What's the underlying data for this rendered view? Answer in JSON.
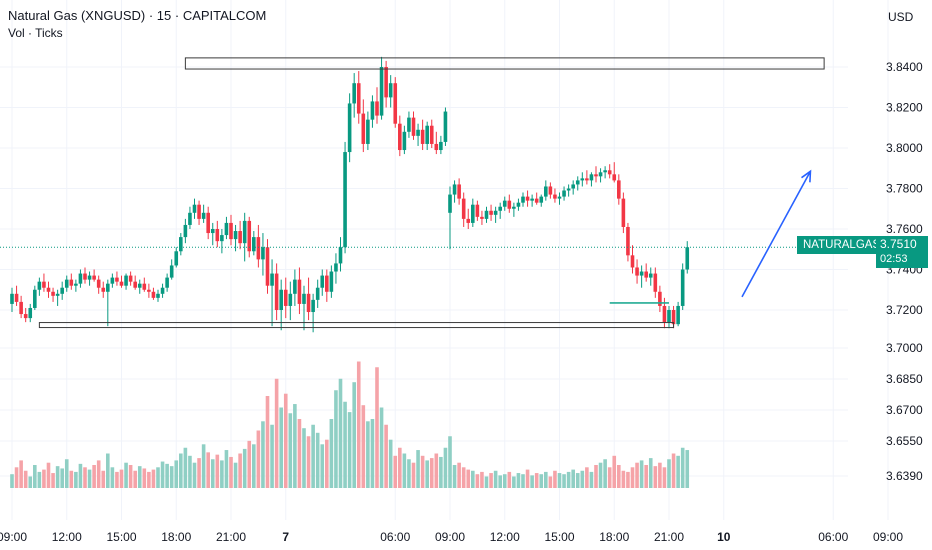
{
  "header": {
    "title": "Natural Gas (XNGUSD) · 15 · CAPITALCOM",
    "subtitle": "Vol · Ticks",
    "currency": "USD"
  },
  "price_label": {
    "symbol": "NATURALGAS",
    "last": "3.7510",
    "countdown": "02:53"
  },
  "colors": {
    "up": "#089981",
    "down": "#f23645",
    "vol_up": "#8fcfc4",
    "vol_down": "#f5a3a8",
    "arrow": "#2962ff",
    "line": "#22ab94",
    "box": "#3a3a3a"
  },
  "chart_data": {
    "type": "candlestick",
    "title": "Natural Gas (XNGUSD) · 15 · CAPITALCOM",
    "y_axis": {
      "ticks": [
        "3.8400",
        "3.8200",
        "3.8000",
        "3.7800",
        "3.7600",
        "3.7400",
        "3.7200",
        "3.7000",
        "3.6850",
        "3.6700",
        "3.6550",
        "3.6390"
      ],
      "tick_values": [
        3.84,
        3.82,
        3.8,
        3.78,
        3.76,
        3.74,
        3.72,
        3.7,
        3.685,
        3.67,
        3.655,
        3.639
      ],
      "unit": "USD"
    },
    "x_axis": {
      "ticks": [
        "09:00",
        "12:00",
        "15:00",
        "18:00",
        "21:00",
        "7",
        "06:00",
        "09:00",
        "12:00",
        "15:00",
        "18:00",
        "21:00",
        "10",
        "06:00",
        "09:00"
      ],
      "tick_hours": [
        0,
        3,
        6,
        9,
        12,
        15,
        21,
        24,
        27,
        30,
        33,
        36,
        39,
        45,
        48
      ],
      "bold_ticks": [
        "7",
        "10"
      ]
    },
    "start_hour": 0,
    "bar_hours": 0.25,
    "ohlc": [
      [
        3.723,
        3.731,
        3.719,
        3.728
      ],
      [
        3.728,
        3.732,
        3.722,
        3.724
      ],
      [
        3.724,
        3.727,
        3.716,
        3.718
      ],
      [
        3.718,
        3.721,
        3.714,
        3.716
      ],
      [
        3.716,
        3.723,
        3.714,
        3.721
      ],
      [
        3.721,
        3.732,
        3.72,
        3.73
      ],
      [
        3.73,
        3.736,
        3.727,
        3.734
      ],
      [
        3.734,
        3.738,
        3.729,
        3.731
      ],
      [
        3.731,
        3.734,
        3.726,
        3.729
      ],
      [
        3.729,
        3.731,
        3.724,
        3.727
      ],
      [
        3.727,
        3.73,
        3.722,
        3.728
      ],
      [
        3.728,
        3.734,
        3.725,
        3.731
      ],
      [
        3.731,
        3.737,
        3.729,
        3.735
      ],
      [
        3.735,
        3.738,
        3.73,
        3.732
      ],
      [
        3.732,
        3.735,
        3.729,
        3.733
      ],
      [
        3.733,
        3.74,
        3.731,
        3.738
      ],
      [
        3.738,
        3.741,
        3.733,
        3.735
      ],
      [
        3.735,
        3.739,
        3.732,
        3.737
      ],
      [
        3.737,
        3.74,
        3.734,
        3.735
      ],
      [
        3.735,
        3.737,
        3.728,
        3.731
      ],
      [
        3.731,
        3.734,
        3.726,
        3.729
      ],
      [
        3.729,
        3.735,
        3.712,
        3.733
      ],
      [
        3.733,
        3.738,
        3.731,
        3.736
      ],
      [
        3.736,
        3.739,
        3.732,
        3.734
      ],
      [
        3.734,
        3.737,
        3.731,
        3.732
      ],
      [
        3.732,
        3.738,
        3.73,
        3.737
      ],
      [
        3.737,
        3.739,
        3.732,
        3.734
      ],
      [
        3.734,
        3.737,
        3.73,
        3.731
      ],
      [
        3.731,
        3.735,
        3.728,
        3.733
      ],
      [
        3.733,
        3.736,
        3.729,
        3.73
      ],
      [
        3.73,
        3.733,
        3.726,
        3.729
      ],
      [
        3.729,
        3.731,
        3.725,
        3.726
      ],
      [
        3.726,
        3.73,
        3.724,
        3.728
      ],
      [
        3.728,
        3.733,
        3.726,
        3.731
      ],
      [
        3.731,
        3.738,
        3.729,
        3.736
      ],
      [
        3.736,
        3.745,
        3.735,
        3.742
      ],
      [
        3.742,
        3.751,
        3.741,
        3.749
      ],
      [
        3.749,
        3.758,
        3.747,
        3.756
      ],
      [
        3.756,
        3.765,
        3.753,
        3.762
      ],
      [
        3.762,
        3.771,
        3.76,
        3.768
      ],
      [
        3.768,
        3.775,
        3.765,
        3.772
      ],
      [
        3.772,
        3.774,
        3.762,
        3.765
      ],
      [
        3.765,
        3.772,
        3.763,
        3.768
      ],
      [
        3.768,
        3.771,
        3.755,
        3.758
      ],
      [
        3.758,
        3.763,
        3.752,
        3.76
      ],
      [
        3.76,
        3.764,
        3.751,
        3.754
      ],
      [
        3.754,
        3.76,
        3.748,
        3.757
      ],
      [
        3.757,
        3.766,
        3.755,
        3.763
      ],
      [
        3.763,
        3.767,
        3.752,
        3.755
      ],
      [
        3.755,
        3.762,
        3.749,
        3.759
      ],
      [
        3.759,
        3.764,
        3.75,
        3.753
      ],
      [
        3.753,
        3.768,
        3.744,
        3.764
      ],
      [
        3.764,
        3.766,
        3.746,
        3.749
      ],
      [
        3.749,
        3.759,
        3.747,
        3.756
      ],
      [
        3.756,
        3.762,
        3.741,
        3.745
      ],
      [
        3.745,
        3.758,
        3.737,
        3.751
      ],
      [
        3.751,
        3.755,
        3.728,
        3.732
      ],
      [
        3.732,
        3.745,
        3.712,
        3.738
      ],
      [
        3.738,
        3.743,
        3.715,
        3.72
      ],
      [
        3.72,
        3.735,
        3.71,
        3.73
      ],
      [
        3.73,
        3.736,
        3.716,
        3.722
      ],
      [
        3.722,
        3.734,
        3.715,
        3.728
      ],
      [
        3.728,
        3.74,
        3.722,
        3.735
      ],
      [
        3.735,
        3.741,
        3.718,
        3.723
      ],
      [
        3.723,
        3.732,
        3.71,
        3.728
      ],
      [
        3.728,
        3.736,
        3.715,
        3.719
      ],
      [
        3.719,
        3.728,
        3.709,
        3.725
      ],
      [
        3.725,
        3.735,
        3.721,
        3.731
      ],
      [
        3.731,
        3.74,
        3.727,
        3.737
      ],
      [
        3.737,
        3.74,
        3.724,
        3.729
      ],
      [
        3.729,
        3.742,
        3.726,
        3.739
      ],
      [
        3.739,
        3.748,
        3.733,
        3.743
      ],
      [
        3.743,
        3.756,
        3.739,
        3.751
      ],
      [
        3.751,
        3.803,
        3.748,
        3.798
      ],
      [
        3.798,
        3.827,
        3.793,
        3.822
      ],
      [
        3.822,
        3.837,
        3.815,
        3.832
      ],
      [
        3.832,
        3.838,
        3.812,
        3.817
      ],
      [
        3.817,
        3.824,
        3.798,
        3.802
      ],
      [
        3.802,
        3.818,
        3.799,
        3.814
      ],
      [
        3.814,
        3.826,
        3.81,
        3.823
      ],
      [
        3.823,
        3.83,
        3.812,
        3.816
      ],
      [
        3.816,
        3.845,
        3.814,
        3.84
      ],
      [
        3.84,
        3.843,
        3.82,
        3.825
      ],
      [
        3.825,
        3.836,
        3.82,
        3.832
      ],
      [
        3.832,
        3.835,
        3.81,
        3.812
      ],
      [
        3.812,
        3.816,
        3.796,
        3.799
      ],
      [
        3.799,
        3.811,
        3.797,
        3.808
      ],
      [
        3.808,
        3.818,
        3.805,
        3.815
      ],
      [
        3.815,
        3.818,
        3.804,
        3.806
      ],
      [
        3.806,
        3.812,
        3.801,
        3.809
      ],
      [
        3.809,
        3.814,
        3.799,
        3.802
      ],
      [
        3.802,
        3.813,
        3.799,
        3.811
      ],
      [
        3.811,
        3.814,
        3.8,
        3.802
      ],
      [
        3.802,
        3.808,
        3.797,
        3.799
      ],
      [
        3.799,
        3.806,
        3.797,
        3.803
      ],
      [
        3.803,
        3.82,
        3.801,
        3.818
      ],
      [
        3.768,
        3.781,
        3.75,
        3.777
      ],
      [
        3.777,
        3.784,
        3.773,
        3.782
      ],
      [
        3.782,
        3.785,
        3.772,
        3.775
      ],
      [
        3.775,
        3.778,
        3.761,
        3.765
      ],
      [
        3.765,
        3.77,
        3.76,
        3.763
      ],
      [
        3.763,
        3.775,
        3.761,
        3.772
      ],
      [
        3.772,
        3.774,
        3.764,
        3.766
      ],
      [
        3.766,
        3.769,
        3.762,
        3.765
      ],
      [
        3.765,
        3.771,
        3.763,
        3.769
      ],
      [
        3.769,
        3.772,
        3.764,
        3.767
      ],
      [
        3.767,
        3.771,
        3.763,
        3.769
      ],
      [
        3.769,
        3.773,
        3.765,
        3.771
      ],
      [
        3.771,
        3.776,
        3.769,
        3.774
      ],
      [
        3.774,
        3.777,
        3.768,
        3.77
      ],
      [
        3.77,
        3.773,
        3.766,
        3.771
      ],
      [
        3.771,
        3.775,
        3.769,
        3.773
      ],
      [
        3.773,
        3.778,
        3.771,
        3.776
      ],
      [
        3.776,
        3.779,
        3.771,
        3.774
      ],
      [
        3.774,
        3.777,
        3.771,
        3.775
      ],
      [
        3.775,
        3.778,
        3.772,
        3.773
      ],
      [
        3.773,
        3.777,
        3.771,
        3.776
      ],
      [
        3.776,
        3.784,
        3.774,
        3.781
      ],
      [
        3.781,
        3.783,
        3.775,
        3.777
      ],
      [
        3.777,
        3.78,
        3.773,
        3.775
      ],
      [
        3.775,
        3.778,
        3.772,
        3.776
      ],
      [
        3.776,
        3.781,
        3.774,
        3.779
      ],
      [
        3.779,
        3.782,
        3.776,
        3.78
      ],
      [
        3.78,
        3.784,
        3.777,
        3.782
      ],
      [
        3.782,
        3.786,
        3.779,
        3.784
      ],
      [
        3.784,
        3.788,
        3.781,
        3.785
      ],
      [
        3.785,
        3.789,
        3.782,
        3.784
      ],
      [
        3.784,
        3.788,
        3.781,
        3.787
      ],
      [
        3.787,
        3.791,
        3.783,
        3.786
      ],
      [
        3.786,
        3.79,
        3.783,
        3.788
      ],
      [
        3.788,
        3.791,
        3.785,
        3.789
      ],
      [
        3.789,
        3.792,
        3.785,
        3.787
      ],
      [
        3.787,
        3.793,
        3.783,
        3.784
      ],
      [
        3.784,
        3.787,
        3.772,
        3.775
      ],
      [
        3.775,
        3.778,
        3.758,
        3.761
      ],
      [
        3.761,
        3.763,
        3.744,
        3.747
      ],
      [
        3.747,
        3.752,
        3.738,
        3.741
      ],
      [
        3.741,
        3.745,
        3.733,
        3.737
      ],
      [
        3.737,
        3.742,
        3.731,
        3.739
      ],
      [
        3.739,
        3.743,
        3.734,
        3.736
      ],
      [
        3.736,
        3.741,
        3.732,
        3.738
      ],
      [
        3.738,
        3.741,
        3.726,
        3.729
      ],
      [
        3.729,
        3.732,
        3.719,
        3.722
      ],
      [
        3.722,
        3.726,
        3.711,
        3.714
      ],
      [
        3.714,
        3.722,
        3.711,
        3.72
      ],
      [
        3.72,
        3.722,
        3.711,
        3.713
      ],
      [
        3.713,
        3.724,
        3.712,
        3.722
      ],
      [
        3.722,
        3.743,
        3.72,
        3.74
      ],
      [
        3.74,
        3.754,
        3.738,
        3.751
      ]
    ],
    "volume": [
      12,
      18,
      24,
      15,
      10,
      20,
      14,
      16,
      22,
      13,
      19,
      17,
      25,
      15,
      14,
      21,
      18,
      16,
      20,
      24,
      15,
      30,
      18,
      14,
      16,
      22,
      20,
      15,
      19,
      17,
      14,
      16,
      18,
      23,
      21,
      19,
      24,
      30,
      35,
      28,
      22,
      26,
      38,
      31,
      25,
      29,
      24,
      33,
      27,
      22,
      30,
      34,
      41,
      38,
      50,
      58,
      80,
      55,
      95,
      70,
      82,
      65,
      73,
      60,
      52,
      45,
      55,
      48,
      38,
      42,
      60,
      85,
      95,
      75,
      66,
      92,
      110,
      72,
      58,
      60,
      105,
      70,
      55,
      42,
      28,
      35,
      30,
      25,
      22,
      33,
      28,
      24,
      26,
      30,
      27,
      35,
      45,
      20,
      22,
      18,
      16,
      15,
      12,
      14,
      10,
      13,
      15,
      11,
      12,
      14,
      10,
      13,
      12,
      16,
      11,
      13,
      12,
      14,
      10,
      15,
      13,
      12,
      14,
      16,
      13,
      15,
      18,
      14,
      20,
      22,
      25,
      18,
      28,
      20,
      15,
      14,
      18,
      22,
      24,
      20,
      26,
      19,
      22,
      18,
      25,
      30,
      28,
      35,
      33
    ]
  },
  "annotations": {
    "top_box": {
      "y_low": 3.839,
      "y_high": 3.8445,
      "x_start_hour": 9.5,
      "x_end_hour": 44.5
    },
    "bottom_box": {
      "y_low": 3.7118,
      "y_high": 3.7138,
      "x_start_hour": 1.5,
      "x_end_hour": 36.25
    },
    "horizontal_line": {
      "y": 3.7235,
      "x_start_hour": 32.75,
      "x_end_hour": 36.0
    },
    "arrow": {
      "x1_hour": 40.0,
      "y1": 3.7265,
      "x2_hour": 43.75,
      "y2": 3.7885
    },
    "last_price_line": {
      "y": 3.751
    }
  }
}
